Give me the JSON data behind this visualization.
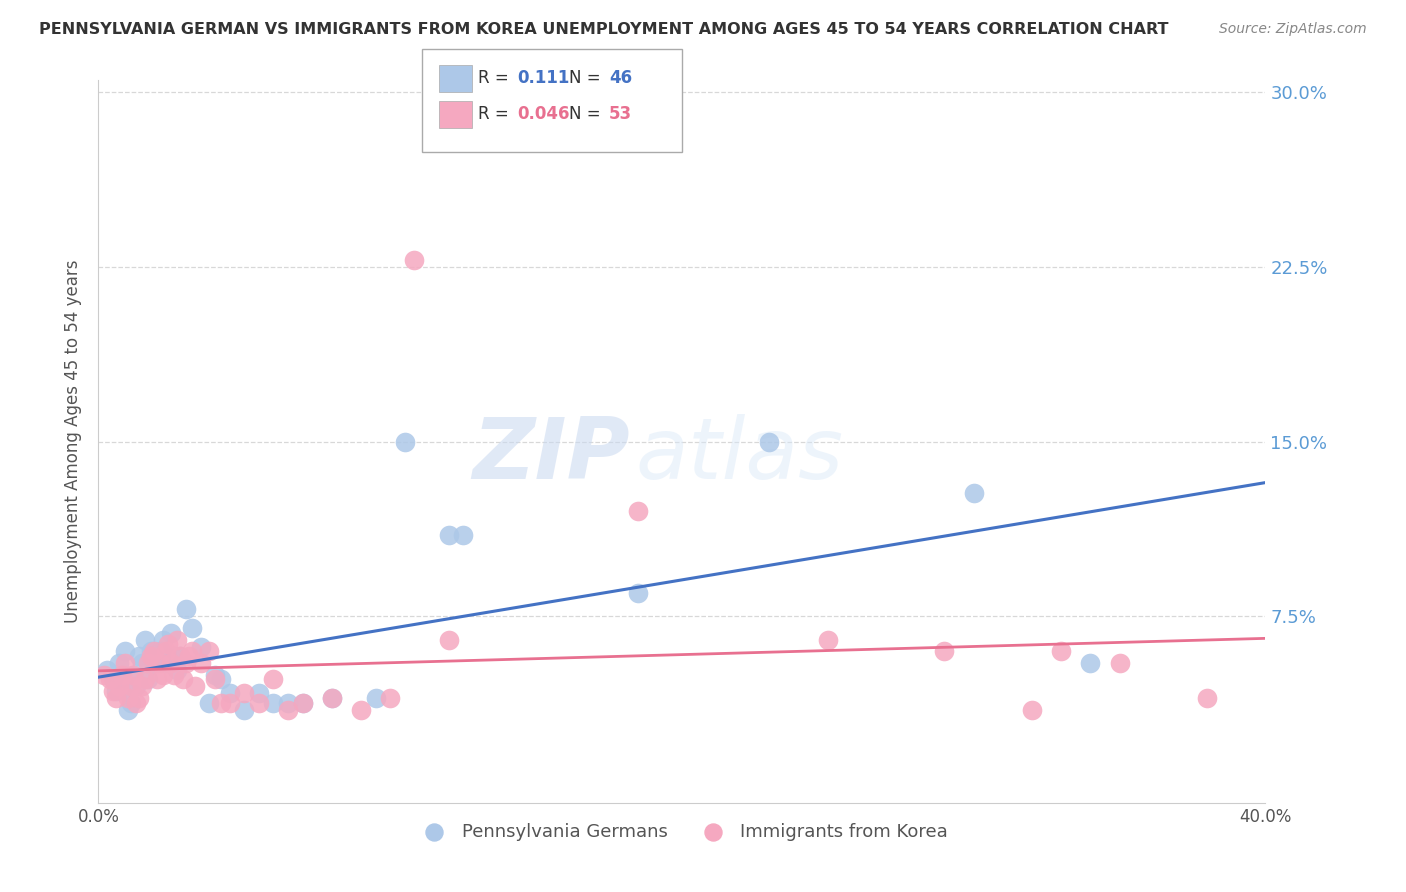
{
  "title": "PENNSYLVANIA GERMAN VS IMMIGRANTS FROM KOREA UNEMPLOYMENT AMONG AGES 45 TO 54 YEARS CORRELATION CHART",
  "source": "Source: ZipAtlas.com",
  "ylabel": "Unemployment Among Ages 45 to 54 years",
  "xlim": [
    0.0,
    0.4
  ],
  "ylim": [
    -0.005,
    0.305
  ],
  "blue_R": 0.111,
  "blue_N": 46,
  "pink_R": 0.046,
  "pink_N": 53,
  "blue_color": "#adc8e8",
  "pink_color": "#f5a8c0",
  "blue_line_color": "#4472c4",
  "pink_line_color": "#e87090",
  "blue_scatter": [
    [
      0.003,
      0.052
    ],
    [
      0.005,
      0.048
    ],
    [
      0.006,
      0.043
    ],
    [
      0.007,
      0.055
    ],
    [
      0.008,
      0.05
    ],
    [
      0.009,
      0.06
    ],
    [
      0.01,
      0.042
    ],
    [
      0.01,
      0.035
    ],
    [
      0.011,
      0.038
    ],
    [
      0.012,
      0.05
    ],
    [
      0.013,
      0.045
    ],
    [
      0.014,
      0.058
    ],
    [
      0.015,
      0.055
    ],
    [
      0.016,
      0.065
    ],
    [
      0.017,
      0.048
    ],
    [
      0.018,
      0.06
    ],
    [
      0.019,
      0.055
    ],
    [
      0.02,
      0.055
    ],
    [
      0.021,
      0.06
    ],
    [
      0.022,
      0.065
    ],
    [
      0.023,
      0.055
    ],
    [
      0.025,
      0.068
    ],
    [
      0.026,
      0.058
    ],
    [
      0.027,
      0.052
    ],
    [
      0.028,
      0.058
    ],
    [
      0.03,
      0.078
    ],
    [
      0.032,
      0.07
    ],
    [
      0.035,
      0.062
    ],
    [
      0.038,
      0.038
    ],
    [
      0.04,
      0.05
    ],
    [
      0.042,
      0.048
    ],
    [
      0.045,
      0.042
    ],
    [
      0.05,
      0.035
    ],
    [
      0.055,
      0.042
    ],
    [
      0.06,
      0.038
    ],
    [
      0.065,
      0.038
    ],
    [
      0.07,
      0.038
    ],
    [
      0.08,
      0.04
    ],
    [
      0.095,
      0.04
    ],
    [
      0.105,
      0.15
    ],
    [
      0.12,
      0.11
    ],
    [
      0.125,
      0.11
    ],
    [
      0.185,
      0.085
    ],
    [
      0.23,
      0.15
    ],
    [
      0.3,
      0.128
    ],
    [
      0.34,
      0.055
    ]
  ],
  "pink_scatter": [
    [
      0.002,
      0.05
    ],
    [
      0.004,
      0.048
    ],
    [
      0.005,
      0.043
    ],
    [
      0.006,
      0.04
    ],
    [
      0.007,
      0.045
    ],
    [
      0.008,
      0.05
    ],
    [
      0.009,
      0.055
    ],
    [
      0.01,
      0.04
    ],
    [
      0.011,
      0.045
    ],
    [
      0.012,
      0.05
    ],
    [
      0.013,
      0.038
    ],
    [
      0.014,
      0.04
    ],
    [
      0.015,
      0.045
    ],
    [
      0.016,
      0.048
    ],
    [
      0.017,
      0.055
    ],
    [
      0.018,
      0.058
    ],
    [
      0.019,
      0.06
    ],
    [
      0.02,
      0.048
    ],
    [
      0.021,
      0.055
    ],
    [
      0.022,
      0.05
    ],
    [
      0.023,
      0.06
    ],
    [
      0.024,
      0.063
    ],
    [
      0.025,
      0.055
    ],
    [
      0.026,
      0.05
    ],
    [
      0.027,
      0.065
    ],
    [
      0.028,
      0.058
    ],
    [
      0.029,
      0.048
    ],
    [
      0.03,
      0.055
    ],
    [
      0.031,
      0.058
    ],
    [
      0.032,
      0.06
    ],
    [
      0.033,
      0.045
    ],
    [
      0.035,
      0.055
    ],
    [
      0.038,
      0.06
    ],
    [
      0.04,
      0.048
    ],
    [
      0.042,
      0.038
    ],
    [
      0.045,
      0.038
    ],
    [
      0.05,
      0.042
    ],
    [
      0.055,
      0.038
    ],
    [
      0.06,
      0.048
    ],
    [
      0.065,
      0.035
    ],
    [
      0.07,
      0.038
    ],
    [
      0.08,
      0.04
    ],
    [
      0.09,
      0.035
    ],
    [
      0.1,
      0.04
    ],
    [
      0.108,
      0.228
    ],
    [
      0.12,
      0.065
    ],
    [
      0.185,
      0.12
    ],
    [
      0.25,
      0.065
    ],
    [
      0.29,
      0.06
    ],
    [
      0.32,
      0.035
    ],
    [
      0.33,
      0.06
    ],
    [
      0.35,
      0.055
    ],
    [
      0.38,
      0.04
    ]
  ],
  "watermark": "ZIPatlas",
  "background_color": "#ffffff",
  "grid_color": "#d8d8d8"
}
